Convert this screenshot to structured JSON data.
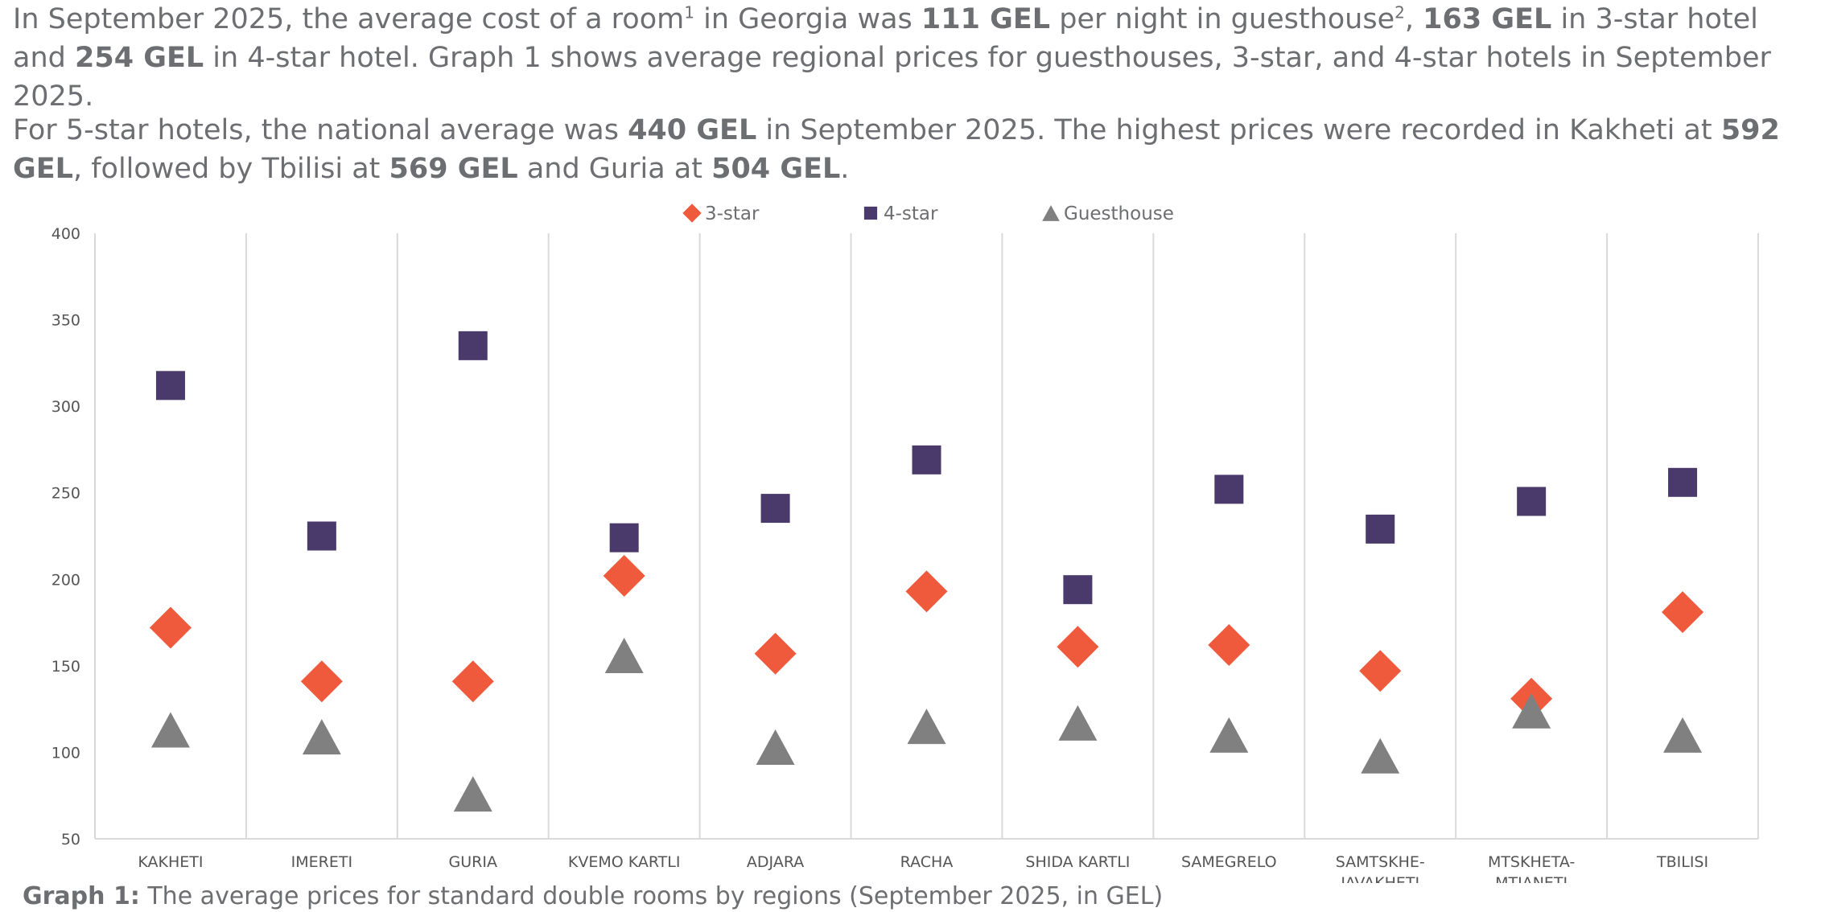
{
  "intro": {
    "p1_parts": [
      {
        "t": "In September 2025, the average cost of a room"
      },
      {
        "t": "1",
        "sup": true
      },
      {
        "t": " in Georgia was "
      },
      {
        "t": "111 GEL",
        "b": true
      },
      {
        "t": " per night in guesthouse"
      },
      {
        "t": "2",
        "sup": true
      },
      {
        "t": ", "
      },
      {
        "t": "163 GEL",
        "b": true
      },
      {
        "t": " in 3-star hotel and "
      },
      {
        "t": "254 GEL",
        "b": true
      },
      {
        "t": " in 4-star hotel. Graph 1 shows average regional prices for guesthouses, 3-star, and 4-star hotels in September 2025."
      }
    ],
    "p2_parts": [
      {
        "t": "For 5-star hotels, the national average was "
      },
      {
        "t": "440 GEL",
        "b": true
      },
      {
        "t": " in September 2025. The highest prices were recorded in Kakheti at "
      },
      {
        "t": "592 GEL",
        "b": true
      },
      {
        "t": ", followed by Tbilisi at "
      },
      {
        "t": "569 GEL",
        "b": true
      },
      {
        "t": " and Guria at "
      },
      {
        "t": "504 GEL",
        "b": true
      },
      {
        "t": "."
      }
    ]
  },
  "caption": {
    "label": "Graph 1:",
    "text": " The average prices for standard double rooms by regions (September 2025, in GEL)"
  },
  "chart_data": {
    "type": "scatter",
    "title": "",
    "xlabel": "",
    "ylabel": "",
    "ylim": [
      50,
      400
    ],
    "yticks": [
      50,
      100,
      150,
      200,
      250,
      300,
      350,
      400
    ],
    "grid": "vertical separators between categories",
    "legend_position": "top-center",
    "categories": [
      [
        "KAKHETI"
      ],
      [
        "IMERETI"
      ],
      [
        "GURIA"
      ],
      [
        "KVEMO KARTLI"
      ],
      [
        "ADJARA"
      ],
      [
        "RACHA"
      ],
      [
        "SHIDA KARTLI"
      ],
      [
        "SAMEGRELO"
      ],
      [
        "SAMTSKHE-",
        "JAVAKHETI"
      ],
      [
        "MTSKHETA-",
        "MTIANETI"
      ],
      [
        "TBILISI"
      ]
    ],
    "series": [
      {
        "name": "3-star",
        "marker": "diamond",
        "color": "#f05a3c",
        "values": [
          172,
          141,
          141,
          202,
          157,
          193,
          161,
          162,
          147,
          131,
          181
        ]
      },
      {
        "name": "4-star",
        "marker": "square",
        "color": "#4a3a6b",
        "values": [
          312,
          225,
          335,
          224,
          241,
          269,
          194,
          252,
          229,
          245,
          256
        ]
      },
      {
        "name": "Guesthouse",
        "marker": "triangle",
        "color": "#808080",
        "values": [
          113,
          109,
          76,
          156,
          103,
          115,
          117,
          110,
          98,
          124,
          110
        ]
      }
    ]
  }
}
